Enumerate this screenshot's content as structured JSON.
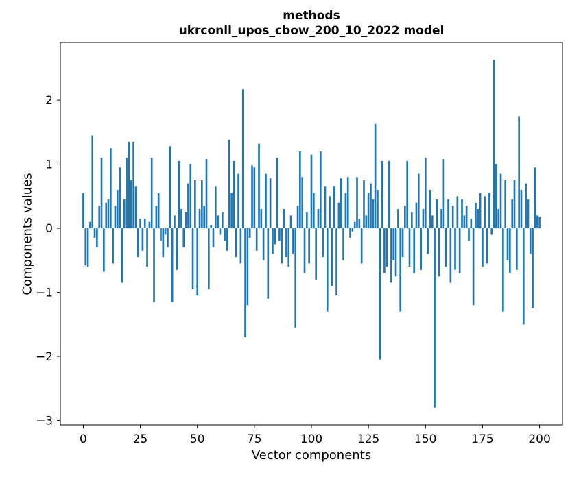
{
  "title": {
    "line1": "methods",
    "line2": "ukrconll_upos_cbow_200_10_2022 model"
  },
  "chart_data": {
    "type": "bar",
    "title": "methods\nukrconll_upos_cbow_200_10_2022 model",
    "xlabel": "Vector components",
    "ylabel": "Components values",
    "bar_color": "#1f77b4",
    "grid": false,
    "legend": null,
    "xlim": [
      -10.05,
      210.05
    ],
    "ylim": [
      -3.07,
      2.9
    ],
    "bar_width": 0.8,
    "x_start": 0,
    "xticks": {
      "values": [
        0,
        25,
        50,
        75,
        100,
        125,
        150,
        175,
        200
      ],
      "labels": [
        "0",
        "25",
        "50",
        "75",
        "100",
        "125",
        "150",
        "175",
        "200"
      ]
    },
    "yticks": {
      "values": [
        -3,
        -2,
        -1,
        0,
        1,
        2
      ],
      "labels": [
        "−3",
        "−2",
        "−1",
        "0",
        "1",
        "2"
      ]
    },
    "values": [
      0.55,
      -0.58,
      -0.6,
      0.1,
      1.45,
      -0.15,
      -0.3,
      0.35,
      1.1,
      -0.68,
      0.4,
      0.45,
      1.25,
      -0.55,
      0.35,
      0.6,
      0.95,
      -0.85,
      0.45,
      1.1,
      1.35,
      0.75,
      1.35,
      0.65,
      -0.45,
      0.15,
      -0.35,
      0.15,
      -0.6,
      0.1,
      1.1,
      -1.15,
      0.35,
      0.55,
      -0.2,
      -0.45,
      -0.1,
      -0.3,
      1.28,
      -1.15,
      0.2,
      -0.65,
      1.05,
      0.3,
      -0.3,
      0.25,
      0.7,
      1.0,
      -0.95,
      0.75,
      -1.05,
      0.3,
      0.75,
      0.35,
      1.08,
      -0.95,
      0.05,
      -0.3,
      0.65,
      0.2,
      -0.1,
      0.25,
      -0.2,
      -0.35,
      1.38,
      0.55,
      1.05,
      -0.45,
      0.85,
      -0.55,
      2.17,
      -1.7,
      -1.2,
      -0.15,
      0.98,
      0.95,
      -0.35,
      1.32,
      0.3,
      -0.5,
      0.85,
      -1.1,
      0.78,
      -0.4,
      -0.25,
      1.1,
      -0.2,
      -0.55,
      0.3,
      -0.45,
      -0.6,
      0.2,
      -0.4,
      -1.55,
      0.35,
      1.2,
      0.8,
      -0.7,
      0.25,
      -0.55,
      1.15,
      0.55,
      -0.8,
      0.3,
      1.2,
      -0.45,
      0.65,
      -1.3,
      0.5,
      -0.9,
      0.65,
      -1.05,
      0.4,
      0.78,
      -0.5,
      0.55,
      0.8,
      -0.15,
      -0.05,
      0.1,
      0.8,
      0.15,
      -0.55,
      0.75,
      0.2,
      0.55,
      0.7,
      0.45,
      1.63,
      0.6,
      -2.05,
      1.05,
      -0.7,
      -0.6,
      1.05,
      -0.85,
      -0.5,
      -0.75,
      0.3,
      -1.3,
      -0.45,
      0.35,
      1.05,
      -0.6,
      0.25,
      -0.7,
      0.4,
      0.85,
      -0.65,
      0.3,
      1.1,
      -0.4,
      0.6,
      0.2,
      -2.8,
      0.45,
      -0.75,
      0.3,
      1.08,
      -0.6,
      0.45,
      -0.85,
      0.35,
      -0.65,
      0.5,
      -0.7,
      0.45,
      0.2,
      0.35,
      -0.2,
      0.15,
      -1.2,
      0.4,
      0.3,
      0.55,
      -0.6,
      0.5,
      -0.55,
      0.55,
      -0.1,
      2.63,
      1.0,
      0.3,
      0.85,
      -1.3,
      0.75,
      -0.5,
      -0.7,
      0.45,
      0.75,
      -0.65,
      1.75,
      0.6,
      -1.5,
      0.7,
      0.45,
      -0.4,
      -1.25,
      0.95,
      0.2,
      0.18
    ]
  }
}
